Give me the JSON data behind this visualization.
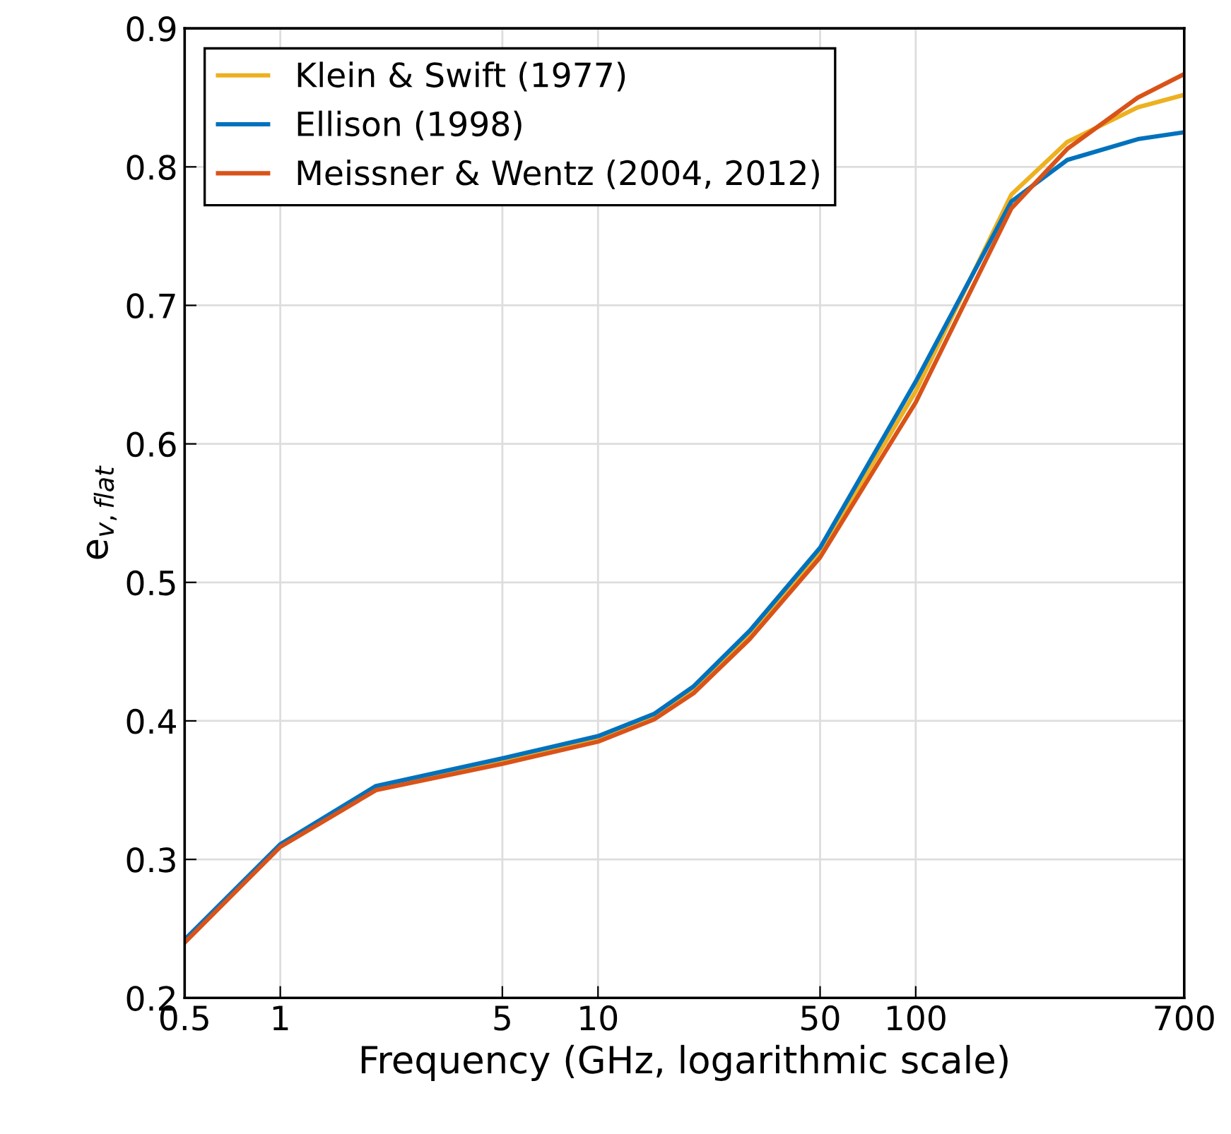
{
  "chart_data": {
    "type": "line",
    "xlabel": "Frequency (GHz, logarithmic scale)",
    "ylabel": "e$_{v,flat}$",
    "log": "x",
    "grid": true,
    "legend": "top left",
    "marker": "none",
    "line_style": "solid",
    "x": [
      0.5,
      1,
      2,
      5,
      10,
      15,
      20,
      30,
      50,
      100,
      200,
      300,
      500,
      700
    ],
    "xlim": [
      0.5,
      700
    ],
    "xticks": [
      0.5,
      1,
      5,
      10,
      50,
      100,
      700
    ],
    "ylim": [
      0.2,
      0.9
    ],
    "yticks": [
      0.2,
      0.3,
      0.4,
      0.5,
      0.6,
      0.7,
      0.8,
      0.9
    ],
    "series": [
      {
        "name": "Klein & Swift (1977)",
        "color": "#edb120",
        "values": [
          null,
          null,
          0.351,
          0.371,
          0.387,
          0.403,
          0.423,
          0.462,
          0.522,
          0.638,
          0.78,
          0.818,
          0.843,
          0.852
        ]
      },
      {
        "name": "Ellison (1998)",
        "color": "#0072bd",
        "values": [
          0.242,
          0.311,
          0.353,
          0.373,
          0.389,
          0.405,
          0.425,
          0.465,
          0.525,
          0.645,
          0.775,
          0.805,
          0.82,
          0.825
        ]
      },
      {
        "name": "Meissner & Wentz (2004, 2012)",
        "color": "#d95319",
        "values": [
          0.24,
          0.309,
          0.35,
          0.369,
          0.385,
          0.401,
          0.42,
          0.459,
          0.518,
          0.63,
          0.77,
          0.813,
          0.85,
          0.867
        ]
      }
    ]
  }
}
